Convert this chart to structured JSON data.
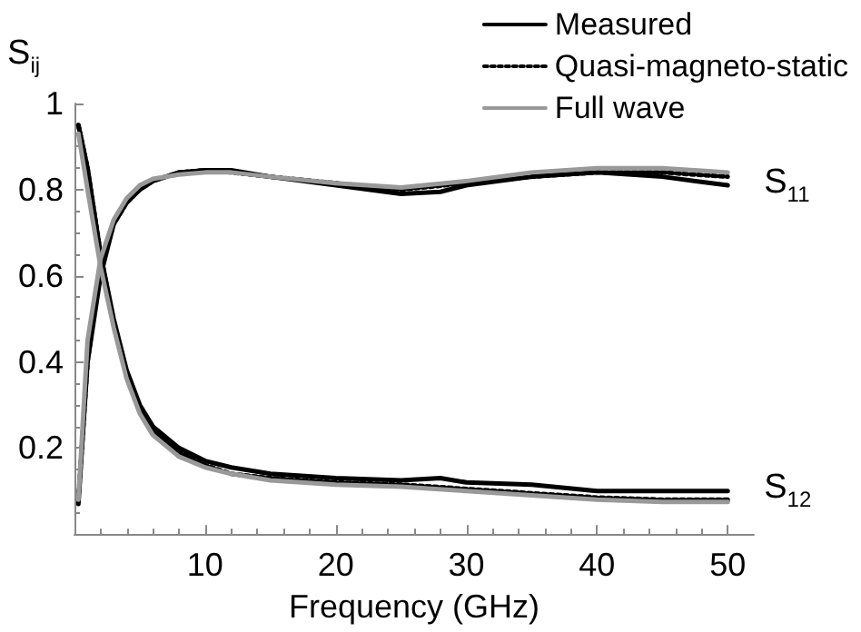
{
  "chart_data": {
    "type": "line",
    "xlabel": "Frequency (GHz)",
    "ylabel": "S$_{ij}$",
    "xlim": [
      0,
      52
    ],
    "xticks": [
      10,
      20,
      30,
      40,
      50
    ],
    "ylim": [
      0,
      1
    ],
    "yticks": [
      0.2,
      0.4,
      0.6,
      0.8,
      1
    ],
    "grid": false,
    "legend": "top right",
    "marker": "none",
    "annotations": [
      {
        "text": "S$_{11}$",
        "x": 50,
        "y": 0.81
      },
      {
        "text": "S$_{12}$",
        "x": 50,
        "y": 0.1
      }
    ],
    "series": [
      {
        "name": "Measured",
        "color": "#000000",
        "line_style": "solid",
        "x": [
          0.3,
          1,
          2,
          3,
          4,
          5,
          6,
          8,
          10,
          12,
          15,
          20,
          25,
          28,
          30,
          35,
          40,
          45,
          50
        ],
        "values": [
          0.07,
          0.4,
          0.6,
          0.72,
          0.77,
          0.8,
          0.82,
          0.84,
          0.845,
          0.845,
          0.83,
          0.81,
          0.79,
          0.795,
          0.81,
          0.83,
          0.84,
          0.83,
          0.81
        ]
      },
      {
        "color": "#000000",
        "line_style": "solid",
        "x": [
          0.3,
          1,
          2,
          3,
          4,
          5,
          6,
          8,
          10,
          12,
          15,
          20,
          25,
          28,
          30,
          35,
          40,
          45,
          50
        ],
        "values": [
          0.95,
          0.85,
          0.65,
          0.5,
          0.38,
          0.3,
          0.25,
          0.2,
          0.17,
          0.155,
          0.14,
          0.13,
          0.125,
          0.13,
          0.12,
          0.115,
          0.1,
          0.1,
          0.1
        ]
      },
      {
        "name": "Quasi-magneto-static",
        "color": "#000000",
        "line_style": "dotted",
        "x": [
          0.3,
          1,
          2,
          3,
          4,
          5,
          6,
          8,
          10,
          12,
          15,
          20,
          25,
          30,
          35,
          40,
          45,
          50
        ],
        "values": [
          0.08,
          0.4,
          0.62,
          0.72,
          0.77,
          0.8,
          0.82,
          0.84,
          0.845,
          0.84,
          0.83,
          0.815,
          0.8,
          0.815,
          0.83,
          0.84,
          0.84,
          0.83
        ]
      },
      {
        "color": "#000000",
        "line_style": "dotted",
        "x": [
          0.3,
          1,
          2,
          3,
          4,
          5,
          6,
          8,
          10,
          12,
          15,
          20,
          25,
          30,
          35,
          40,
          45,
          50
        ],
        "values": [
          0.95,
          0.85,
          0.65,
          0.49,
          0.37,
          0.29,
          0.24,
          0.19,
          0.16,
          0.14,
          0.13,
          0.12,
          0.115,
          0.105,
          0.095,
          0.085,
          0.08,
          0.08
        ]
      },
      {
        "name": "Full wave",
        "color": "#999999",
        "line_style": "solid",
        "x": [
          0.3,
          1,
          2,
          3,
          4,
          5,
          6,
          8,
          10,
          12,
          15,
          20,
          25,
          30,
          35,
          40,
          45,
          50
        ],
        "values": [
          0.08,
          0.45,
          0.64,
          0.73,
          0.78,
          0.81,
          0.825,
          0.835,
          0.84,
          0.84,
          0.83,
          0.815,
          0.805,
          0.82,
          0.84,
          0.85,
          0.85,
          0.84
        ]
      },
      {
        "color": "#999999",
        "line_style": "solid",
        "x": [
          0.3,
          1,
          2,
          3,
          4,
          5,
          6,
          8,
          10,
          12,
          15,
          20,
          25,
          30,
          35,
          40,
          45,
          50
        ],
        "values": [
          0.93,
          0.8,
          0.62,
          0.48,
          0.36,
          0.28,
          0.23,
          0.18,
          0.155,
          0.14,
          0.125,
          0.115,
          0.11,
          0.1,
          0.09,
          0.08,
          0.075,
          0.075
        ]
      }
    ]
  }
}
